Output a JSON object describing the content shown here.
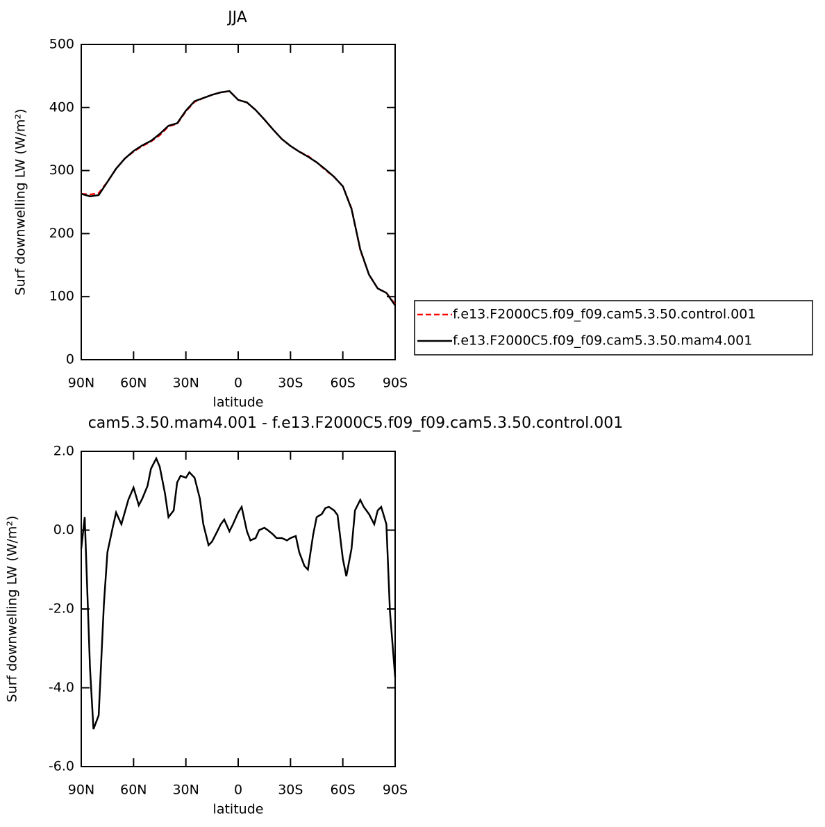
{
  "chart_data": [
    {
      "type": "line",
      "title": "JJA",
      "x_label": "latitude",
      "y_label": "Surf downwelling LW (W/m²)",
      "x": [
        90,
        85,
        80,
        75,
        70,
        65,
        60,
        55,
        50,
        45,
        40,
        35,
        30,
        25,
        20,
        15,
        10,
        5,
        0,
        -5,
        -10,
        -15,
        -20,
        -25,
        -30,
        -35,
        -40,
        -45,
        -50,
        -55,
        -60,
        -65,
        -70,
        -75,
        -80,
        -85,
        -90
      ],
      "series": [
        {
          "name": "f.e13.F2000C5.f09_f09.cam5.3.50.control.001",
          "color": "#ff0000",
          "line_style": "dashed",
          "values": [
            263,
            262,
            264,
            282,
            303,
            319,
            330,
            339,
            346,
            356,
            370,
            374,
            394,
            409,
            415,
            420,
            424,
            426,
            412,
            408,
            396,
            381,
            365,
            350,
            339,
            330,
            323,
            313,
            301,
            290,
            275,
            240,
            174,
            135,
            113,
            106,
            88
          ]
        },
        {
          "name": "f.e13.F2000C5.f09_f09.cam5.3.50.mam4.001",
          "color": "#000000",
          "line_style": "solid",
          "values": [
            263,
            259,
            261,
            282,
            303,
            319,
            331,
            340,
            347,
            358,
            371,
            375,
            395,
            410,
            415,
            420,
            424,
            426,
            412,
            408,
            396,
            381,
            365,
            350,
            339,
            330,
            322,
            313,
            302,
            290,
            275,
            239,
            175,
            135,
            113,
            106,
            86
          ]
        }
      ],
      "xlim": [
        90,
        -90
      ],
      "xticks": [
        {
          "value": 90,
          "label": "90N"
        },
        {
          "value": 60,
          "label": "60N"
        },
        {
          "value": 30,
          "label": "30N"
        },
        0,
        {
          "value": -30,
          "label": "30S"
        },
        {
          "value": -60,
          "label": "60S"
        },
        {
          "value": -90,
          "label": "90S"
        }
      ],
      "ylim": [
        0,
        500
      ],
      "yticks": [
        0,
        100,
        200,
        300,
        400,
        500
      ],
      "legend": "right"
    },
    {
      "type": "line",
      "title": "cam5.3.50.mam4.001 - f.e13.F2000C5.f09_f09.cam5.3.50.control.001",
      "x_label": "latitude",
      "y_label": "Surf downwelling LW (W/m²)",
      "x": [
        90,
        88,
        85,
        83,
        80,
        77,
        75,
        72,
        70,
        67,
        63,
        60,
        57,
        55,
        52,
        50,
        47,
        45,
        42,
        40,
        37,
        35,
        33,
        30,
        28,
        25,
        22,
        20,
        17,
        15,
        12,
        10,
        8,
        5,
        3,
        0,
        -2,
        -5,
        -7,
        -10,
        -12,
        -15,
        -17,
        -20,
        -22,
        -25,
        -28,
        -30,
        -33,
        -35,
        -38,
        -40,
        -43,
        -45,
        -48,
        -50,
        -52,
        -55,
        -57,
        -60,
        -62,
        -65,
        -67,
        -70,
        -72,
        -75,
        -78,
        -80,
        -82,
        -85,
        -87,
        -90
      ],
      "values": [
        -0.47,
        0.33,
        -3.5,
        -5.05,
        -4.7,
        -1.88,
        -0.56,
        0.06,
        0.45,
        0.15,
        0.77,
        1.08,
        0.63,
        0.8,
        1.12,
        1.56,
        1.82,
        1.61,
        0.94,
        0.33,
        0.5,
        1.21,
        1.38,
        1.33,
        1.47,
        1.33,
        0.8,
        0.15,
        -0.38,
        -0.29,
        -0.03,
        0.15,
        0.27,
        -0.03,
        0.15,
        0.45,
        0.59,
        -0.03,
        -0.26,
        -0.2,
        0.0,
        0.06,
        0.0,
        -0.11,
        -0.2,
        -0.2,
        -0.26,
        -0.2,
        -0.15,
        -0.56,
        -0.91,
        -1.0,
        -0.11,
        0.33,
        0.41,
        0.56,
        0.59,
        0.5,
        0.38,
        -0.73,
        -1.17,
        -0.47,
        0.5,
        0.77,
        0.59,
        0.41,
        0.15,
        0.5,
        0.59,
        0.15,
        -2.06,
        -3.73
      ],
      "color": "#000000",
      "xlim": [
        90,
        -90
      ],
      "xticks": [
        {
          "value": 90,
          "label": "90N"
        },
        {
          "value": 60,
          "label": "60N"
        },
        {
          "value": 30,
          "label": "30N"
        },
        0,
        {
          "value": -30,
          "label": "30S"
        },
        {
          "value": -60,
          "label": "60S"
        },
        {
          "value": -90,
          "label": "90S"
        }
      ],
      "ylim": [
        -6,
        2
      ],
      "yticks": [
        {
          "value": -6,
          "label": "-6.0"
        },
        {
          "value": -4,
          "label": "-4.0"
        },
        {
          "value": -2,
          "label": "-2.0"
        },
        {
          "value": 0,
          "label": "0.0"
        },
        {
          "value": 2,
          "label": "2.0"
        }
      ]
    }
  ]
}
